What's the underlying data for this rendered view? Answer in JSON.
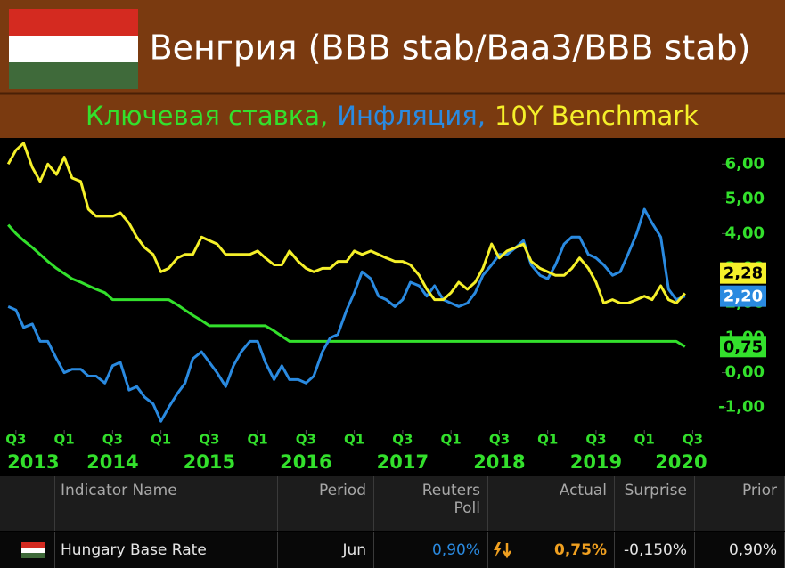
{
  "chart_data": {
    "type": "line",
    "title": "Венгрия (BBB stab/Baa3/BBB stab)",
    "x": [
      2013.42,
      2013.5,
      2013.58,
      2013.67,
      2013.75,
      2013.83,
      2013.92,
      2014.0,
      2014.08,
      2014.17,
      2014.25,
      2014.33,
      2014.42,
      2014.5,
      2014.58,
      2014.67,
      2014.75,
      2014.83,
      2014.92,
      2015.0,
      2015.08,
      2015.17,
      2015.25,
      2015.33,
      2015.42,
      2015.5,
      2015.58,
      2015.67,
      2015.75,
      2015.83,
      2015.92,
      2016.0,
      2016.08,
      2016.17,
      2016.25,
      2016.33,
      2016.42,
      2016.5,
      2016.58,
      2016.67,
      2016.75,
      2016.83,
      2016.92,
      2017.0,
      2017.08,
      2017.17,
      2017.25,
      2017.33,
      2017.42,
      2017.5,
      2017.58,
      2017.67,
      2017.75,
      2017.83,
      2017.92,
      2018.0,
      2018.08,
      2018.17,
      2018.25,
      2018.33,
      2018.42,
      2018.5,
      2018.58,
      2018.67,
      2018.75,
      2018.83,
      2018.92,
      2019.0,
      2019.08,
      2019.17,
      2019.25,
      2019.33,
      2019.42,
      2019.5,
      2019.58,
      2019.67,
      2019.75,
      2019.83,
      2019.92,
      2020.0,
      2020.08,
      2020.17,
      2020.25,
      2020.33,
      2020.42
    ],
    "series": [
      {
        "name": "Ключевая ставка,",
        "color": "#33e02c",
        "last_value_label": "0,75",
        "values": [
          4.25,
          4.0,
          3.8,
          3.6,
          3.4,
          3.2,
          3.0,
          2.85,
          2.7,
          2.6,
          2.5,
          2.4,
          2.3,
          2.1,
          2.1,
          2.1,
          2.1,
          2.1,
          2.1,
          2.1,
          2.1,
          1.95,
          1.8,
          1.65,
          1.5,
          1.35,
          1.35,
          1.35,
          1.35,
          1.35,
          1.35,
          1.35,
          1.35,
          1.2,
          1.05,
          0.9,
          0.9,
          0.9,
          0.9,
          0.9,
          0.9,
          0.9,
          0.9,
          0.9,
          0.9,
          0.9,
          0.9,
          0.9,
          0.9,
          0.9,
          0.9,
          0.9,
          0.9,
          0.9,
          0.9,
          0.9,
          0.9,
          0.9,
          0.9,
          0.9,
          0.9,
          0.9,
          0.9,
          0.9,
          0.9,
          0.9,
          0.9,
          0.9,
          0.9,
          0.9,
          0.9,
          0.9,
          0.9,
          0.9,
          0.9,
          0.9,
          0.9,
          0.9,
          0.9,
          0.9,
          0.9,
          0.9,
          0.9,
          0.9,
          0.75
        ]
      },
      {
        "name": "Инфляция,",
        "color": "#2a8ae0",
        "last_value_label": "2,20",
        "values": [
          1.9,
          1.8,
          1.3,
          1.4,
          0.9,
          0.9,
          0.4,
          0.0,
          0.1,
          0.1,
          -0.1,
          -0.1,
          -0.3,
          0.2,
          0.3,
          -0.5,
          -0.4,
          -0.7,
          -0.9,
          -1.4,
          -1.0,
          -0.6,
          -0.3,
          0.4,
          0.6,
          0.3,
          0.0,
          -0.4,
          0.2,
          0.6,
          0.9,
          0.9,
          0.3,
          -0.2,
          0.2,
          -0.2,
          -0.2,
          -0.3,
          -0.1,
          0.6,
          1.0,
          1.1,
          1.8,
          2.3,
          2.9,
          2.7,
          2.2,
          2.1,
          1.9,
          2.1,
          2.6,
          2.5,
          2.2,
          2.5,
          2.1,
          2.0,
          1.9,
          2.0,
          2.3,
          2.8,
          3.1,
          3.4,
          3.4,
          3.6,
          3.8,
          3.1,
          2.8,
          2.7,
          3.1,
          3.7,
          3.9,
          3.9,
          3.4,
          3.3,
          3.1,
          2.8,
          2.9,
          3.4,
          4.0,
          4.7,
          4.3,
          3.9,
          2.4,
          2.1,
          2.2
        ]
      },
      {
        "name": "10Y Benchmark",
        "color": "#f5f02a",
        "last_value_label": "2,28",
        "values": [
          6.0,
          6.4,
          6.6,
          5.9,
          5.5,
          6.0,
          5.7,
          6.2,
          5.6,
          5.5,
          4.7,
          4.5,
          4.5,
          4.5,
          4.6,
          4.3,
          3.9,
          3.6,
          3.4,
          2.9,
          3.0,
          3.3,
          3.4,
          3.4,
          3.9,
          3.8,
          3.7,
          3.4,
          3.4,
          3.4,
          3.4,
          3.5,
          3.3,
          3.1,
          3.1,
          3.5,
          3.2,
          3.0,
          2.9,
          3.0,
          3.0,
          3.2,
          3.2,
          3.5,
          3.4,
          3.5,
          3.4,
          3.3,
          3.2,
          3.2,
          3.1,
          2.8,
          2.4,
          2.1,
          2.1,
          2.3,
          2.6,
          2.4,
          2.6,
          3.0,
          3.7,
          3.3,
          3.5,
          3.6,
          3.7,
          3.2,
          3.0,
          2.9,
          2.8,
          2.8,
          3.0,
          3.3,
          3.0,
          2.6,
          2.0,
          2.1,
          2.0,
          2.0,
          2.1,
          2.2,
          2.1,
          2.5,
          2.1,
          2.0,
          2.28
        ]
      }
    ],
    "xlim": [
      2013.4,
      2020.8
    ],
    "ylim": [
      -1.65,
      6.75
    ],
    "yticks": [
      {
        "value": -1,
        "label": "-1,00"
      },
      {
        "value": 0,
        "label": "0,00"
      },
      {
        "value": 1,
        "label": "1,00"
      },
      {
        "value": 2,
        "label": "2,00"
      },
      {
        "value": 3,
        "label": "3,00"
      },
      {
        "value": 4,
        "label": "4,00"
      },
      {
        "value": 5,
        "label": "5,00"
      },
      {
        "value": 6,
        "label": "6,00"
      }
    ],
    "xticks": [
      {
        "value": 2013.5,
        "label": "Q3"
      },
      {
        "value": 2014.0,
        "label": "Q1"
      },
      {
        "value": 2014.5,
        "label": "Q3"
      },
      {
        "value": 2015.0,
        "label": "Q1"
      },
      {
        "value": 2015.5,
        "label": "Q3"
      },
      {
        "value": 2016.0,
        "label": "Q1"
      },
      {
        "value": 2016.5,
        "label": "Q3"
      },
      {
        "value": 2017.0,
        "label": "Q1"
      },
      {
        "value": 2017.5,
        "label": "Q3"
      },
      {
        "value": 2018.0,
        "label": "Q1"
      },
      {
        "value": 2018.5,
        "label": "Q3"
      },
      {
        "value": 2019.0,
        "label": "Q1"
      },
      {
        "value": 2019.5,
        "label": "Q3"
      },
      {
        "value": 2020.0,
        "label": "Q1"
      },
      {
        "value": 2020.5,
        "label": "Q3"
      }
    ],
    "year_ticks": [
      {
        "value": 2013.68,
        "label": "2013"
      },
      {
        "value": 2014.5,
        "label": "2014"
      },
      {
        "value": 2015.5,
        "label": "2015"
      },
      {
        "value": 2016.5,
        "label": "2016"
      },
      {
        "value": 2017.5,
        "label": "2017"
      },
      {
        "value": 2018.5,
        "label": "2018"
      },
      {
        "value": 2019.5,
        "label": "2019"
      },
      {
        "value": 2020.38,
        "label": "2020"
      }
    ],
    "axis_color": "#33e02c",
    "grid": false
  },
  "table": {
    "columns": [
      "Indicator Name",
      "Period",
      "Reuters Poll",
      "Actual",
      "Surprise",
      "Prior"
    ],
    "rows": [
      [
        "Hungary Base Rate",
        "Jun",
        "0,90%",
        "0,75%",
        "-0,150%",
        "0,90%"
      ]
    ]
  }
}
